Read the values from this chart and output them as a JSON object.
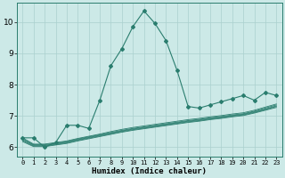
{
  "xlabel": "Humidex (Indice chaleur)",
  "x_values": [
    0,
    1,
    2,
    3,
    4,
    5,
    6,
    7,
    8,
    9,
    10,
    11,
    12,
    13,
    14,
    15,
    16,
    17,
    18,
    19,
    20,
    21,
    22,
    23
  ],
  "main_line": [
    6.3,
    6.3,
    6.0,
    6.15,
    6.7,
    6.7,
    6.6,
    7.5,
    8.6,
    9.15,
    9.85,
    10.35,
    9.95,
    9.4,
    8.45,
    7.3,
    7.25,
    7.35,
    7.45,
    7.55,
    7.65,
    7.5,
    7.75,
    7.65
  ],
  "band_lines": [
    [
      6.3,
      6.1,
      6.1,
      6.15,
      6.2,
      6.28,
      6.35,
      6.42,
      6.5,
      6.57,
      6.63,
      6.68,
      6.73,
      6.78,
      6.83,
      6.88,
      6.92,
      6.97,
      7.01,
      7.06,
      7.1,
      7.18,
      7.28,
      7.38
    ],
    [
      6.27,
      6.08,
      6.08,
      6.13,
      6.18,
      6.26,
      6.33,
      6.4,
      6.47,
      6.54,
      6.6,
      6.65,
      6.7,
      6.75,
      6.8,
      6.85,
      6.89,
      6.94,
      6.98,
      7.03,
      7.07,
      7.15,
      7.25,
      7.35
    ],
    [
      6.24,
      6.06,
      6.06,
      6.11,
      6.16,
      6.24,
      6.31,
      6.38,
      6.45,
      6.52,
      6.58,
      6.63,
      6.68,
      6.73,
      6.78,
      6.83,
      6.87,
      6.92,
      6.96,
      7.01,
      7.05,
      7.13,
      7.22,
      7.32
    ],
    [
      6.21,
      6.04,
      6.04,
      6.09,
      6.14,
      6.22,
      6.29,
      6.36,
      6.43,
      6.5,
      6.56,
      6.61,
      6.66,
      6.71,
      6.76,
      6.81,
      6.85,
      6.9,
      6.94,
      6.99,
      7.03,
      7.11,
      7.2,
      7.3
    ],
    [
      6.18,
      6.02,
      6.02,
      6.07,
      6.12,
      6.2,
      6.27,
      6.34,
      6.41,
      6.48,
      6.54,
      6.59,
      6.64,
      6.69,
      6.74,
      6.79,
      6.83,
      6.88,
      6.92,
      6.97,
      7.01,
      7.09,
      7.18,
      7.27
    ]
  ],
  "line_color": "#2a7d6e",
  "bg_color": "#cce9e7",
  "grid_color": "#aad0ce",
  "ylim": [
    5.7,
    10.6
  ],
  "xlim": [
    -0.5,
    23.5
  ],
  "yticks": [
    6,
    7,
    8,
    9,
    10
  ]
}
